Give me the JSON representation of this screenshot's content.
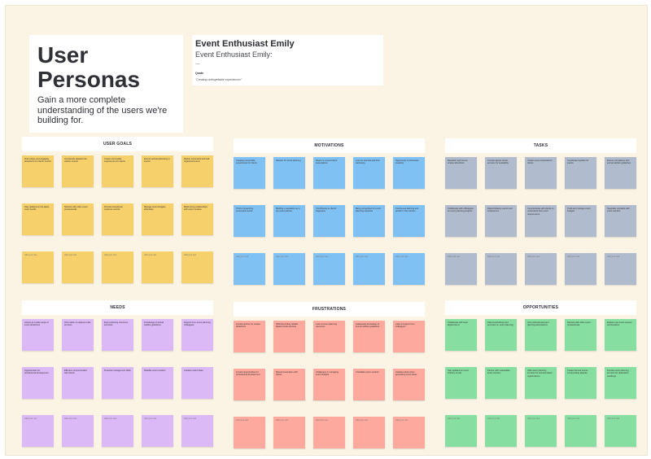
{
  "title_card": {
    "title": "User Personas",
    "subtitle": "Gain a more complete understanding of the users we're building for."
  },
  "persona": {
    "name": "Event Enthusiast Emily",
    "subtitle": "Event Enthusiast Emily:",
    "dots": "...",
    "quote_label": "Quote",
    "quote": "\"Creating unforgettable experiences\""
  },
  "placeholder": "Add your text",
  "sections": [
    {
      "id": "user-goals",
      "title": "USER GOALS",
      "color": "#f5d06b",
      "items": [
        "Find unique and engaging attractions for clients' events",
        "Incorporate alpacas into various events",
        "Create memorable experiences for clients",
        "Ensure animal well-being in events",
        "Deliver successful and well-organized events",
        "Stay updated on the latest event trends",
        "Network with other event professionals",
        "Provide exceptional customer service",
        "Manage event budgets effectively",
        "Build strong relationships with event vendors"
      ]
    },
    {
      "id": "motivations",
      "title": "MOTIVATIONS",
      "color": "#80c1f4",
      "items": [
        "Creating memorable experiences for clients",
        "Passion for event planning",
        "Desire to exceed client expectations",
        "Love for animals and their well-being",
        "Opportunity to showcase creativity",
        "Thrill of organizing successful events",
        "Building a reputation as a top event planner",
        "Contributing to clients' happiness",
        "Being recognized for event planning expertise",
        "Continuous learning and growth in the industry"
      ]
    },
    {
      "id": "tasks",
      "title": "TASKS",
      "color": "#b0bbcd",
      "items": [
        "Research and source unique attractions",
        "Contact alpaca rental services for availability",
        "Create event proposals for clients",
        "Coordinate logistics for events",
        "Ensure compliance with animal welfare guidelines",
        "Collaborate with colleagues on event planning projects",
        "Attend industry events and conferences",
        "Communicate with clients to understand their event requirements",
        "Track and manage event budgets",
        "Negotiate contracts with event vendors"
      ]
    },
    {
      "id": "needs",
      "title": "NEEDS",
      "color": "#dbb9f7",
      "items": [
        "Access to a wide range of event attractions",
        "Information on alpaca rental services",
        "Event planning resources and tools",
        "Knowledge of animal welfare guidelines",
        "Support from event planning colleagues",
        "Opportunities for professional development",
        "Effective communication with clients",
        "Financial management skills",
        "Reliable event vendors",
        "Creative event ideas"
      ]
    },
    {
      "id": "frustrations",
      "title": "FRUSTRATIONS",
      "color": "#fda99d",
      "items": [
        "Limited options for unique attractions",
        "Difficulty finding reliable alpaca rental services",
        "Lack of event planning resources",
        "Inadequate knowledge of animal welfare guidelines",
        "Lack of support from colleagues",
        "Limited opportunities for professional development",
        "Miscommunication with clients",
        "Challenges in managing event budgets",
        "Unreliable event vendors",
        "Creative block when generating event ideas"
      ]
    },
    {
      "id": "opportunities",
      "title": "OPPORTUNITIES",
      "color": "#86dfa1",
      "items": [
        "Collaborate with local alpaca farms",
        "Attend workshops and seminars on event planning",
        "Join professional event planning associations",
        "Network with other event professionals",
        "Explore new event venues and locations",
        "Stay updated on event industry trends",
        "Partner with sustainable event vendors",
        "Offer event planning services for animal-related organizations",
        "Create themed events incorporating alpacas",
        "Provide event planning services for destination weddings"
      ]
    }
  ]
}
